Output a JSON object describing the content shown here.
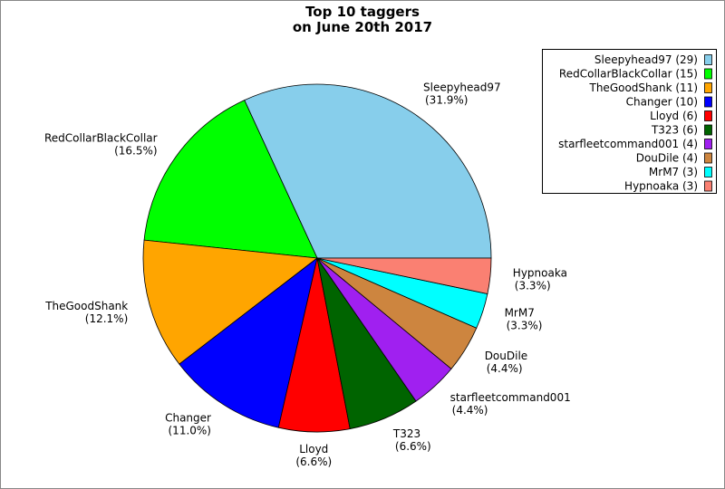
{
  "chart_data": {
    "type": "pie",
    "title": [
      "Top 10 taggers",
      "on June 20th 2017"
    ],
    "categories": [
      "Sleepyhead97",
      "RedCollarBlackCollar",
      "TheGoodShank",
      "Changer",
      "Lloyd",
      "T323",
      "starfleetcommand001",
      "DouDile",
      "MrM7",
      "Hypnoaka"
    ],
    "values": [
      29,
      15,
      11,
      10,
      6,
      6,
      4,
      4,
      3,
      3
    ],
    "percent_labels": [
      "(31.9%)",
      "(16.5%)",
      "(12.1%)",
      "(11.0%)",
      "(6.6%)",
      "(6.6%)",
      "(4.4%)",
      "(4.4%)",
      "(3.3%)",
      "(3.3%)"
    ],
    "legend_labels": [
      "Sleepyhead97 (29)",
      "RedCollarBlackCollar (15)",
      "TheGoodShank (11)",
      "Changer (10)",
      "Lloyd (6)",
      "T323 (6)",
      "starfleetcommand001 (4)",
      "DouDile (4)",
      "MrM7 (3)",
      "Hypnoaka (3)"
    ],
    "colors": [
      "#87ceeb",
      "#00ff00",
      "#ffa500",
      "#0000ff",
      "#ff0000",
      "#006400",
      "#a020f0",
      "#cd853f",
      "#00ffff",
      "#fa8072"
    ],
    "legend_position": "upper right"
  }
}
